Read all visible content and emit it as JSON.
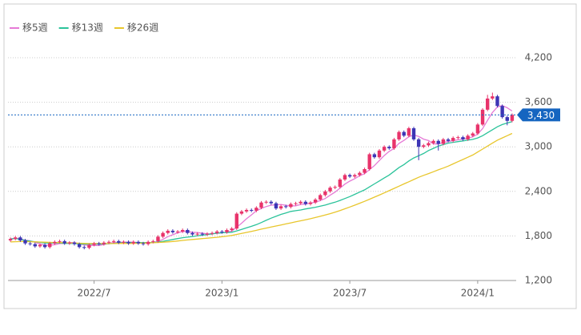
{
  "chart_data": {
    "type": "candlestick",
    "ylim": [
      1200,
      4200
    ],
    "yticks": [
      {
        "value": 1200,
        "label": "1,200"
      },
      {
        "value": 1800,
        "label": "1,800"
      },
      {
        "value": 2400,
        "label": "2,400"
      },
      {
        "value": 3000,
        "label": "3,000"
      },
      {
        "value": 3600,
        "label": "3,600"
      },
      {
        "value": 4200,
        "label": "4,200"
      }
    ],
    "xticks": [
      {
        "value": 17,
        "label": "2022/7"
      },
      {
        "value": 43,
        "label": "2023/1"
      },
      {
        "value": 69,
        "label": "2023/7"
      },
      {
        "value": 95,
        "label": "2024/1"
      }
    ],
    "grid": true,
    "legend": "top-left",
    "up_color": "#e8336b",
    "down_color": "#3d35b5",
    "last_price": {
      "value": 3430,
      "label": "3,430"
    },
    "last_price_color": "#1565c0",
    "open": [
      1740,
      1760,
      1780,
      1740,
      1700,
      1690,
      1660,
      1680,
      1650,
      1700,
      1720,
      1730,
      1700,
      1710,
      1690,
      1650,
      1640,
      1680,
      1700,
      1690,
      1710,
      1720,
      1730,
      1710,
      1720,
      1700,
      1720,
      1700,
      1690,
      1720,
      1730,
      1790,
      1840,
      1870,
      1850,
      1860,
      1880,
      1840,
      1820,
      1830,
      1820,
      1830,
      1840,
      1860,
      1850,
      1880,
      1900,
      2100,
      2130,
      2150,
      2140,
      2180,
      2250,
      2260,
      2240,
      2170,
      2200,
      2190,
      2230,
      2240,
      2260,
      2230,
      2250,
      2290,
      2350,
      2400,
      2450,
      2460,
      2560,
      2620,
      2600,
      2620,
      2650,
      2700,
      2900,
      2860,
      2950,
      3000,
      2980,
      3100,
      3200,
      3150,
      3250,
      3100,
      3000,
      3020,
      3050,
      3080,
      3040,
      3100,
      3080,
      3120,
      3130,
      3100,
      3150,
      3180,
      3300,
      3500,
      3650,
      3680,
      3550,
      3400,
      3350
    ],
    "high": [
      1780,
      1800,
      1800,
      1760,
      1720,
      1710,
      1700,
      1700,
      1720,
      1740,
      1750,
      1750,
      1730,
      1730,
      1710,
      1670,
      1700,
      1720,
      1720,
      1730,
      1740,
      1750,
      1750,
      1740,
      1740,
      1740,
      1740,
      1720,
      1740,
      1750,
      1810,
      1860,
      1890,
      1890,
      1880,
      1900,
      1900,
      1860,
      1850,
      1850,
      1850,
      1860,
      1880,
      1880,
      1900,
      1920,
      2120,
      2150,
      2170,
      2170,
      2200,
      2270,
      2280,
      2280,
      2260,
      2220,
      2220,
      2250,
      2260,
      2280,
      2280,
      2270,
      2310,
      2370,
      2420,
      2470,
      2480,
      2580,
      2640,
      2640,
      2640,
      2670,
      2720,
      2920,
      2920,
      2970,
      3020,
      3020,
      3120,
      3220,
      3220,
      3270,
      3270,
      3120,
      3040,
      3070,
      3100,
      3100,
      3120,
      3120,
      3140,
      3150,
      3150,
      3170,
      3200,
      3320,
      3520,
      3700,
      3730,
      3700,
      3570,
      3420,
      3450
    ],
    "low": [
      1720,
      1740,
      1720,
      1680,
      1670,
      1640,
      1640,
      1630,
      1630,
      1680,
      1700,
      1680,
      1680,
      1670,
      1630,
      1620,
      1620,
      1660,
      1670,
      1670,
      1690,
      1700,
      1690,
      1690,
      1680,
      1680,
      1680,
      1670,
      1670,
      1700,
      1710,
      1770,
      1820,
      1830,
      1830,
      1840,
      1820,
      1800,
      1800,
      1800,
      1800,
      1810,
      1820,
      1830,
      1830,
      1860,
      1880,
      2080,
      2110,
      2120,
      2120,
      2160,
      2230,
      2220,
      2150,
      2150,
      2170,
      2170,
      2210,
      2220,
      2210,
      2210,
      2230,
      2270,
      2330,
      2380,
      2430,
      2440,
      2540,
      2580,
      2580,
      2600,
      2630,
      2680,
      2840,
      2840,
      2930,
      2960,
      2960,
      3080,
      3130,
      3130,
      3080,
      2820,
      2980,
      3000,
      3030,
      2950,
      3020,
      3060,
      3060,
      3100,
      3080,
      3080,
      3130,
      3160,
      3280,
      3480,
      3630,
      3530,
      3380,
      3290,
      3330
    ],
    "close": [
      1760,
      1780,
      1740,
      1700,
      1690,
      1660,
      1680,
      1650,
      1700,
      1720,
      1730,
      1700,
      1710,
      1690,
      1650,
      1640,
      1680,
      1700,
      1690,
      1710,
      1720,
      1730,
      1710,
      1720,
      1700,
      1720,
      1700,
      1690,
      1720,
      1730,
      1790,
      1840,
      1870,
      1850,
      1860,
      1880,
      1840,
      1820,
      1830,
      1820,
      1830,
      1840,
      1860,
      1850,
      1880,
      1900,
      2100,
      2130,
      2150,
      2140,
      2180,
      2250,
      2260,
      2240,
      2170,
      2200,
      2190,
      2230,
      2240,
      2260,
      2230,
      2250,
      2290,
      2350,
      2400,
      2450,
      2460,
      2560,
      2620,
      2600,
      2620,
      2650,
      2700,
      2900,
      2860,
      2950,
      3000,
      2980,
      3100,
      3200,
      3150,
      3250,
      3100,
      3000,
      3020,
      3050,
      3080,
      3040,
      3100,
      3080,
      3120,
      3130,
      3100,
      3150,
      3180,
      3300,
      3500,
      3650,
      3680,
      3550,
      3400,
      3350,
      3430
    ],
    "series": [
      {
        "name": "移5週",
        "color": "#e67ad6",
        "values": [
          1760,
          1770,
          1760,
          1745,
          1734,
          1714,
          1694,
          1676,
          1676,
          1682,
          1696,
          1700,
          1712,
          1710,
          1696,
          1678,
          1674,
          1672,
          1672,
          1684,
          1700,
          1710,
          1712,
          1718,
          1716,
          1716,
          1710,
          1706,
          1706,
          1712,
          1726,
          1754,
          1790,
          1816,
          1842,
          1860,
          1860,
          1850,
          1846,
          1838,
          1828,
          1828,
          1836,
          1840,
          1852,
          1866,
          1918,
          1972,
          2032,
          2084,
          2140,
          2170,
          2196,
          2214,
          2220,
          2224,
          2212,
          2206,
          2206,
          2224,
          2230,
          2242,
          2254,
          2276,
          2304,
          2348,
          2390,
          2444,
          2498,
          2538,
          2572,
          2610,
          2638,
          2694,
          2746,
          2816,
          2882,
          2938,
          2978,
          3046,
          3086,
          3136,
          3160,
          3140,
          3104,
          3084,
          3040,
          3038,
          3058,
          3070,
          3084,
          3094,
          3106,
          3116,
          3136,
          3172,
          3246,
          3356,
          3462,
          3536,
          3556,
          3526,
          3482
        ]
      },
      {
        "name": "移13週",
        "color": "#2bc39a",
        "values": [
          1760,
          1765,
          1755,
          1740,
          1730,
          1720,
          1715,
          1705,
          1705,
          1705,
          1705,
          1700,
          1700,
          1697,
          1693,
          1690,
          1690,
          1690,
          1690,
          1692,
          1695,
          1700,
          1705,
          1708,
          1710,
          1712,
          1712,
          1710,
          1710,
          1712,
          1718,
          1728,
          1740,
          1752,
          1764,
          1776,
          1784,
          1792,
          1802,
          1810,
          1818,
          1828,
          1838,
          1842,
          1846,
          1850,
          1868,
          1888,
          1910,
          1930,
          1952,
          1980,
          2010,
          2040,
          2064,
          2090,
          2110,
          2130,
          2140,
          2150,
          2164,
          2174,
          2186,
          2200,
          2216,
          2236,
          2254,
          2278,
          2304,
          2330,
          2360,
          2390,
          2420,
          2460,
          2500,
          2540,
          2580,
          2620,
          2670,
          2720,
          2760,
          2810,
          2850,
          2880,
          2910,
          2950,
          2980,
          3010,
          3030,
          3050,
          3060,
          3070,
          3080,
          3090,
          3100,
          3120,
          3150,
          3190,
          3230,
          3270,
          3300,
          3320,
          3340
        ]
      },
      {
        "name": "移26週",
        "color": "#e8c62c",
        "values": [
          1720,
          1722,
          1724,
          1724,
          1722,
          1720,
          1718,
          1716,
          1714,
          1712,
          1710,
          1708,
          1706,
          1704,
          1702,
          1700,
          1698,
          1698,
          1698,
          1698,
          1698,
          1698,
          1700,
          1700,
          1700,
          1700,
          1702,
          1704,
          1706,
          1708,
          1712,
          1716,
          1720,
          1726,
          1732,
          1740,
          1746,
          1752,
          1758,
          1764,
          1770,
          1776,
          1782,
          1790,
          1798,
          1806,
          1820,
          1834,
          1848,
          1862,
          1876,
          1892,
          1906,
          1920,
          1934,
          1948,
          1962,
          1976,
          1990,
          2004,
          2018,
          2032,
          2048,
          2064,
          2082,
          2100,
          2120,
          2142,
          2166,
          2190,
          2214,
          2240,
          2266,
          2294,
          2322,
          2350,
          2380,
          2410,
          2440,
          2470,
          2500,
          2530,
          2560,
          2590,
          2616,
          2640,
          2664,
          2690,
          2714,
          2740,
          2770,
          2800,
          2830,
          2860,
          2890,
          2930,
          2970,
          3010,
          3050,
          3090,
          3120,
          3150,
          3180
        ]
      }
    ]
  }
}
